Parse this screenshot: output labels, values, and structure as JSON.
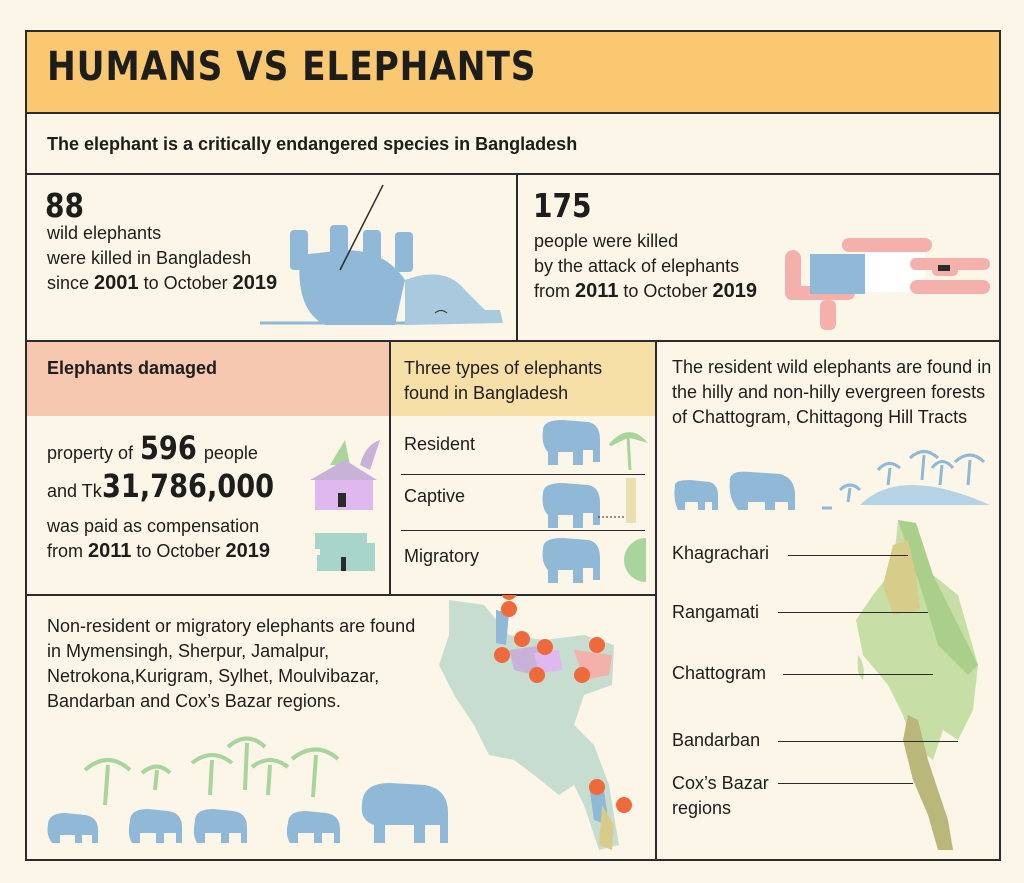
{
  "header": {
    "title": "HUMANS VS ELEPHANTS"
  },
  "subtitle": "The elephant is a critically endangered species in Bangladesh",
  "stat_elephants": {
    "number": "88",
    "line1": "wild elephants",
    "line2": "were killed in Bangladesh",
    "since": "since",
    "year_from": "2001",
    "to_text": "to October",
    "year_to": "2019"
  },
  "stat_people": {
    "number": "175",
    "line1": "people were killed",
    "line2": "by the attack of elephants",
    "from": "from",
    "year_from": "2011",
    "to_text": "to October",
    "year_to": "2019"
  },
  "damage": {
    "heading": "Elephants damaged",
    "prefix": "property of",
    "people_count": "596",
    "suffix": "people",
    "and_tk": "and Tk",
    "amount": "31,786,000",
    "line3": "was paid as compensation",
    "from": "from",
    "year_from": "2011",
    "to_text": "to October",
    "year_to": "2019"
  },
  "types": {
    "heading": "Three types of elephants found in Bangladesh",
    "items": [
      "Resident",
      "Captive",
      "Migratory"
    ]
  },
  "resident": {
    "text": "The resident wild elephants are found in the hilly and non-hilly evergreen forests of Chattogram, Chittagong Hill Tracts",
    "regions": [
      "Khagrachari",
      "Rangamati",
      "Chattogram",
      "Bandarban",
      "Cox’s Bazar regions"
    ]
  },
  "migratory": {
    "text": "Non-resident or migratory elephants are found in Mymensingh, Sherpur, Jamalpur, Netrokona,Kurigram, Sylhet, Moulvibazar, Bandarban and Cox’s Bazar regions."
  },
  "colors": {
    "header_bg": "#f9c870",
    "elephant": "#8fb9d6",
    "damaged_header": "#f6c8b0",
    "types_header": "#f7e0a8",
    "palm": "#a7d59b",
    "pink": "#f4b0aa"
  }
}
